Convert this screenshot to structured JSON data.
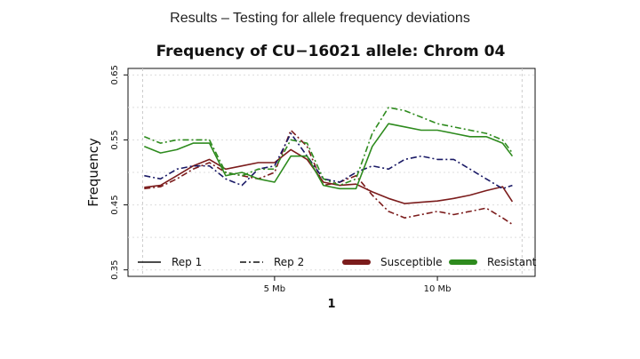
{
  "slide": {
    "title": "Results – Testing for allele frequency deviations"
  },
  "colors": {
    "susceptible": "#7b1c1c",
    "resistant": "#2e8b1e",
    "rep2_susceptible": "#1a1a66",
    "rep2_resistant": "#2e8b1e",
    "grid": "#dddddd"
  },
  "chart_data": {
    "type": "line",
    "title": "Frequency of CU−16021 allele: Chrom 04",
    "xlabel": "1",
    "ylabel": "Frequency",
    "xlim": [
      0.5,
      13.0
    ],
    "ylim": [
      0.34,
      0.66
    ],
    "xticks": [
      {
        "value": 5,
        "label": "5 Mb"
      },
      {
        "value": 10,
        "label": "10 Mb"
      }
    ],
    "yticks": [
      {
        "value": 0.35,
        "label": "0.35"
      },
      {
        "value": 0.45,
        "label": "0.45"
      },
      {
        "value": 0.55,
        "label": "0.55"
      },
      {
        "value": 0.65,
        "label": "0.65"
      }
    ],
    "grid": true,
    "legend_position": "bottom",
    "legend": [
      {
        "label": "Rep 1",
        "style": "solid"
      },
      {
        "label": "Rep 2",
        "style": "dashed"
      },
      {
        "label": "Susceptible",
        "style": "thick",
        "color_key": "susceptible"
      },
      {
        "label": "Resistant",
        "style": "thick",
        "color_key": "resistant"
      }
    ],
    "series": [
      {
        "group": "Susceptible",
        "rep": "Rep 1",
        "style": "solid",
        "color_key": "susceptible",
        "x": [
          1.0,
          1.5,
          2.0,
          2.5,
          3.0,
          3.5,
          4.0,
          4.5,
          5.0,
          5.5,
          6.0,
          6.5,
          7.0,
          7.5,
          8.0,
          8.5,
          9.0,
          9.5,
          10.0,
          10.5,
          11.0,
          11.5,
          12.0,
          12.3
        ],
        "y": [
          0.477,
          0.48,
          0.495,
          0.51,
          0.52,
          0.505,
          0.51,
          0.515,
          0.515,
          0.535,
          0.52,
          0.485,
          0.48,
          0.482,
          0.47,
          0.46,
          0.452,
          0.454,
          0.456,
          0.46,
          0.465,
          0.472,
          0.478,
          0.455
        ]
      },
      {
        "group": "Susceptible",
        "rep": "Rep 2",
        "style": "dashed",
        "color_key": "susceptible",
        "x": [
          1.0,
          1.5,
          2.0,
          2.5,
          3.0,
          3.5,
          4.0,
          4.5,
          5.0,
          5.5,
          6.0,
          6.5,
          7.0,
          7.5,
          8.0,
          8.5,
          9.0,
          9.5,
          10.0,
          10.5,
          11.0,
          11.5,
          12.0,
          12.3
        ],
        "y": [
          0.475,
          0.478,
          0.49,
          0.505,
          0.515,
          0.5,
          0.495,
          0.49,
          0.5,
          0.565,
          0.54,
          0.48,
          0.485,
          0.495,
          0.465,
          0.44,
          0.43,
          0.435,
          0.44,
          0.435,
          0.44,
          0.445,
          0.43,
          0.42
        ]
      },
      {
        "group": "Susceptible",
        "rep": "Rep 2",
        "style": "dashed",
        "color_key": "rep2_susceptible",
        "x": [
          1.0,
          1.5,
          2.0,
          2.5,
          3.0,
          3.5,
          4.0,
          4.5,
          5.0,
          5.5,
          6.0,
          6.5,
          7.0,
          7.5,
          8.0,
          8.5,
          9.0,
          9.5,
          10.0,
          10.5,
          11.0,
          11.5,
          12.0,
          12.3
        ],
        "y": [
          0.495,
          0.49,
          0.505,
          0.51,
          0.51,
          0.49,
          0.48,
          0.505,
          0.51,
          0.56,
          0.525,
          0.49,
          0.485,
          0.5,
          0.51,
          0.505,
          0.52,
          0.525,
          0.52,
          0.52,
          0.505,
          0.49,
          0.475,
          0.48
        ]
      },
      {
        "group": "Resistant",
        "rep": "Rep 1",
        "style": "solid",
        "color_key": "resistant",
        "x": [
          1.0,
          1.5,
          2.0,
          2.5,
          3.0,
          3.5,
          4.0,
          4.5,
          5.0,
          5.5,
          6.0,
          6.5,
          7.0,
          7.5,
          8.0,
          8.5,
          9.0,
          9.5,
          10.0,
          10.5,
          11.0,
          11.5,
          12.0,
          12.3
        ],
        "y": [
          0.54,
          0.53,
          0.535,
          0.545,
          0.545,
          0.495,
          0.5,
          0.49,
          0.485,
          0.525,
          0.525,
          0.48,
          0.475,
          0.475,
          0.54,
          0.575,
          0.57,
          0.565,
          0.565,
          0.56,
          0.555,
          0.555,
          0.545,
          0.525
        ]
      },
      {
        "group": "Resistant",
        "rep": "Rep 2",
        "style": "dashed",
        "color_key": "rep2_resistant",
        "x": [
          1.0,
          1.5,
          2.0,
          2.5,
          3.0,
          3.5,
          4.0,
          4.5,
          5.0,
          5.5,
          6.0,
          6.5,
          7.0,
          7.5,
          8.0,
          8.5,
          9.0,
          9.5,
          10.0,
          10.5,
          11.0,
          11.5,
          12.0,
          12.3
        ],
        "y": [
          0.555,
          0.545,
          0.55,
          0.55,
          0.55,
          0.5,
          0.495,
          0.505,
          0.505,
          0.55,
          0.545,
          0.49,
          0.48,
          0.49,
          0.56,
          0.6,
          0.595,
          0.585,
          0.575,
          0.57,
          0.565,
          0.56,
          0.55,
          0.53
        ]
      }
    ]
  }
}
